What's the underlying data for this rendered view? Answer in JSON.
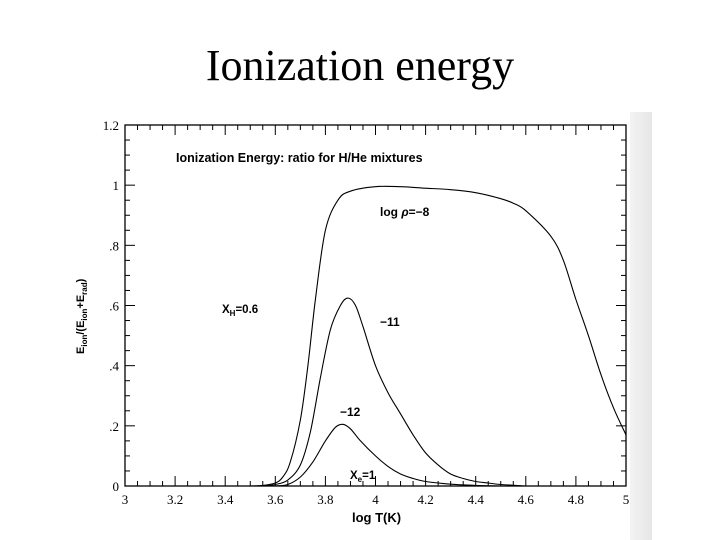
{
  "slide": {
    "title": "Ionization energy"
  },
  "chart_data": {
    "type": "line",
    "title": "Ionization Energy: ratio for H/He mixtures",
    "xlabel": "log  T(K)",
    "ylabel_main": "E",
    "ylabel_sub1": "ion",
    "ylabel_mid": "/(E",
    "ylabel_sub2": "ion",
    "ylabel_plus": "+E",
    "ylabel_sub3": "rad",
    "ylabel_end": ")",
    "xlim": [
      3,
      5
    ],
    "ylim": [
      0,
      1.2
    ],
    "x_ticks": [
      3,
      3.2,
      3.4,
      3.6,
      3.8,
      4,
      4.2,
      4.4,
      4.6,
      4.8,
      5
    ],
    "x_tick_labels": [
      "3",
      "3.2",
      "3.4",
      "3.6",
      "3.8",
      "4",
      "4.2",
      "4.4",
      "4.6",
      "4.8",
      "5"
    ],
    "y_ticks": [
      0,
      0.2,
      0.4,
      0.6,
      0.8,
      1,
      1.2
    ],
    "y_tick_labels": [
      "0",
      ".2",
      ".4",
      ".6",
      ".8",
      "1",
      "1.2"
    ],
    "annotations": {
      "xh_main": "X",
      "xh_sub": "H",
      "xh_value": "=0.6",
      "xhe_main": "X",
      "xhe_sub": "e",
      "xhe_value": "=1",
      "rho_prefix": "log ",
      "rho_symbol": "ρ",
      "rho_value": "=−8",
      "label_minus11": "−11",
      "label_minus12": "−12"
    },
    "series": [
      {
        "name": "log rho = -8",
        "x": [
          3.5,
          3.55,
          3.6,
          3.63,
          3.66,
          3.7,
          3.73,
          3.76,
          3.8,
          3.85,
          3.9,
          4.0,
          4.1,
          4.2,
          4.3,
          4.4,
          4.5,
          4.55,
          4.6,
          4.7,
          4.75,
          4.8,
          4.85,
          4.9,
          4.95,
          5.0
        ],
        "y": [
          0.0,
          0.002,
          0.01,
          0.03,
          0.08,
          0.22,
          0.4,
          0.62,
          0.85,
          0.95,
          0.98,
          0.995,
          0.995,
          0.99,
          0.985,
          0.975,
          0.955,
          0.94,
          0.915,
          0.83,
          0.75,
          0.62,
          0.5,
          0.37,
          0.26,
          0.17
        ]
      },
      {
        "name": "log rho = -11",
        "x": [
          3.55,
          3.6,
          3.65,
          3.7,
          3.74,
          3.78,
          3.82,
          3.86,
          3.89,
          3.92,
          3.95,
          4.0,
          4.05,
          4.1,
          4.15,
          4.2,
          4.25,
          4.3,
          4.35,
          4.4,
          4.45,
          4.5,
          4.6
        ],
        "y": [
          0.0,
          0.005,
          0.02,
          0.07,
          0.18,
          0.36,
          0.52,
          0.6,
          0.625,
          0.6,
          0.53,
          0.4,
          0.31,
          0.24,
          0.17,
          0.11,
          0.07,
          0.04,
          0.025,
          0.015,
          0.01,
          0.005,
          0.0
        ]
      },
      {
        "name": "log rho = -12",
        "x": [
          3.6,
          3.65,
          3.7,
          3.75,
          3.8,
          3.84,
          3.87,
          3.9,
          3.94,
          4.0,
          4.05,
          4.1,
          4.15,
          4.2,
          4.3,
          4.4,
          4.5
        ],
        "y": [
          0.0,
          0.005,
          0.03,
          0.08,
          0.15,
          0.195,
          0.205,
          0.19,
          0.15,
          0.1,
          0.065,
          0.04,
          0.025,
          0.015,
          0.006,
          0.002,
          0.0
        ]
      }
    ]
  }
}
